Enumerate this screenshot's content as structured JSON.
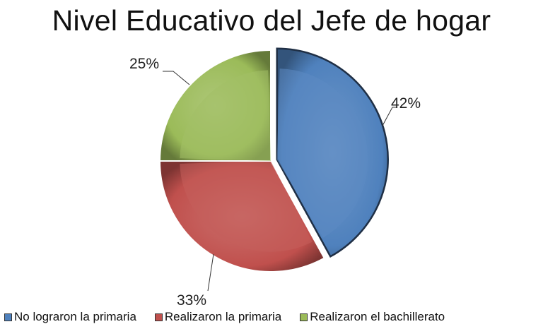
{
  "chart_data": {
    "type": "pie",
    "title": "Nivel Educativo del Jefe de hogar",
    "categories": [
      "No lograron la primaria",
      "Realizaron la primaria",
      "Realizaron el bachillerato"
    ],
    "values": [
      42,
      33,
      25
    ],
    "data_labels": [
      "42%",
      "33%",
      "25%"
    ],
    "colors": [
      "#4f81bd",
      "#c0504d",
      "#9bbb59"
    ],
    "legend_position": "bottom",
    "exploded_slice": "No lograron la primaria",
    "style": "3d-bevel"
  }
}
